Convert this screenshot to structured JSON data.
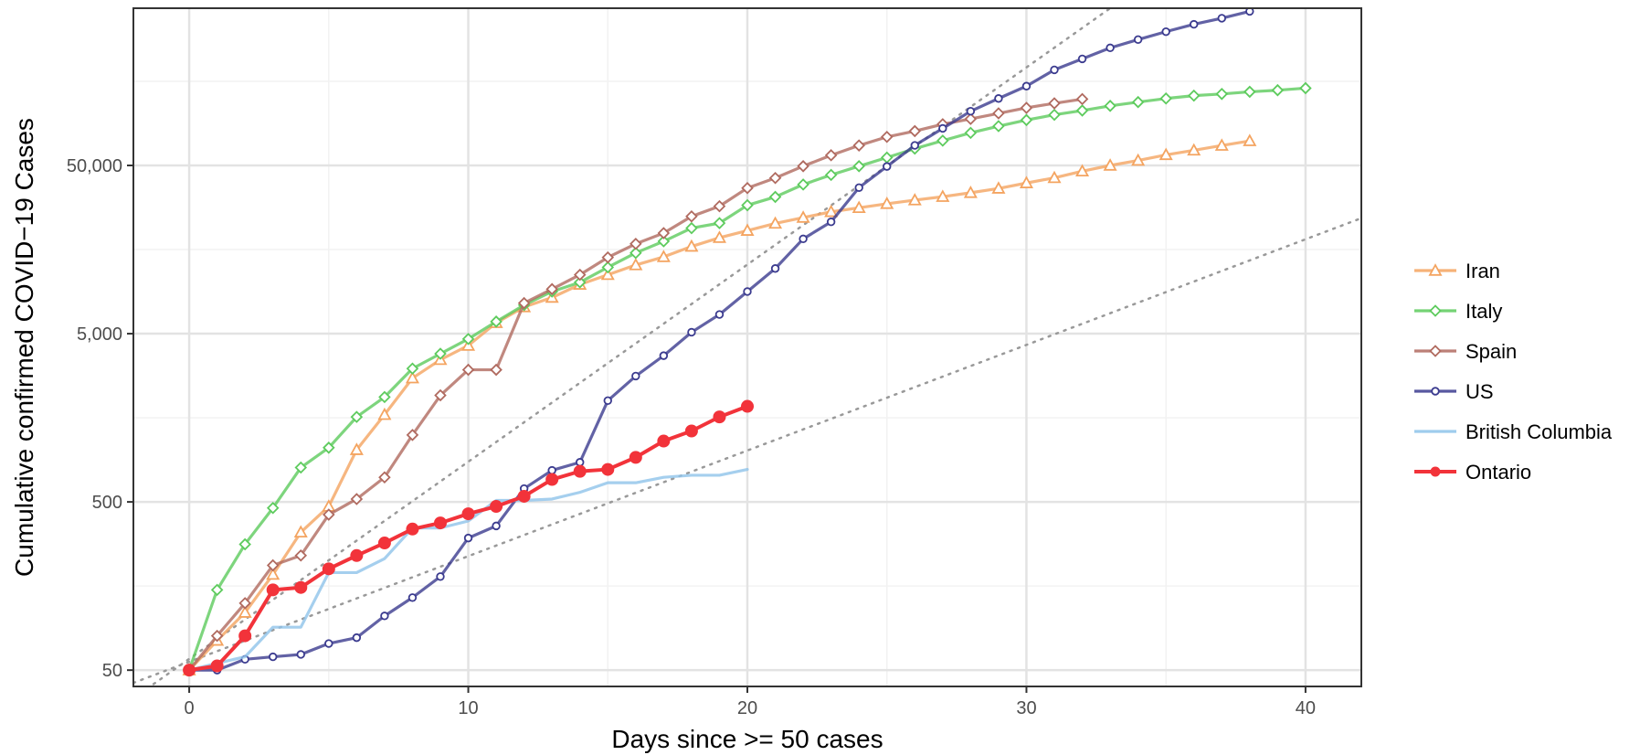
{
  "chart_data": {
    "type": "line",
    "xlabel": "Days since >= 50 cases",
    "ylabel": "Cumulative confirmed COVID−19 Cases",
    "x_scale": "linear",
    "y_scale": "log",
    "xlim": [
      -2,
      42
    ],
    "ylim": [
      40,
      430000
    ],
    "x_ticks": [
      {
        "value": 0,
        "label": "0"
      },
      {
        "value": 10,
        "label": "10"
      },
      {
        "value": 20,
        "label": "20"
      },
      {
        "value": 30,
        "label": "30"
      },
      {
        "value": 40,
        "label": "40"
      }
    ],
    "y_ticks": [
      {
        "value": 50,
        "label": "50"
      },
      {
        "value": 500,
        "label": "500"
      },
      {
        "value": 5000,
        "label": "5,000"
      },
      {
        "value": 50000,
        "label": "50,000"
      }
    ],
    "grid": true,
    "legend_position": "right",
    "reference_lines": [
      {
        "x": [
          -2,
          34
        ],
        "y": [
          34,
          563000
        ],
        "style": "dotted",
        "color": "#999999"
      },
      {
        "x": [
          -2,
          42
        ],
        "y": [
          42,
          24300
        ],
        "style": "dotted",
        "color": "#999999"
      }
    ],
    "series": [
      {
        "name": "Iran",
        "color": "#F4A460",
        "marker": "triangle",
        "x": [
          0,
          1,
          2,
          3,
          4,
          5,
          6,
          7,
          8,
          9,
          10,
          11,
          12,
          13,
          14,
          15,
          16,
          17,
          18,
          19,
          20,
          21,
          22,
          23,
          24,
          25,
          26,
          27,
          28,
          29,
          30,
          31,
          32,
          33,
          34,
          35,
          36,
          37,
          38
        ],
        "y": [
          50,
          75,
          110,
          185,
          330,
          470,
          1020,
          1650,
          2720,
          3500,
          4250,
          5800,
          7200,
          8200,
          9800,
          11200,
          12800,
          14300,
          16500,
          18600,
          20500,
          22600,
          24500,
          26500,
          28000,
          29600,
          31100,
          32600,
          34400,
          36500,
          39300,
          42200,
          46200,
          50000,
          53500,
          57800,
          61500,
          65700,
          69900
        ]
      },
      {
        "name": "Italy",
        "color": "#5DCB5D",
        "marker": "diamond",
        "x": [
          0,
          1,
          2,
          3,
          4,
          5,
          6,
          7,
          8,
          9,
          10,
          11,
          12,
          13,
          14,
          15,
          16,
          17,
          18,
          19,
          20,
          21,
          22,
          23,
          24,
          25,
          26,
          27,
          28,
          29,
          30,
          31,
          32,
          33,
          34,
          35,
          36,
          37,
          38,
          39,
          40
        ],
        "y": [
          50,
          150,
          280,
          460,
          800,
          1050,
          1600,
          2100,
          3100,
          3800,
          4650,
          5900,
          7400,
          8900,
          10100,
          12400,
          15100,
          17700,
          21200,
          22700,
          29000,
          32500,
          38500,
          43900,
          49500,
          55700,
          62900,
          70200,
          78100,
          85600,
          93100,
          100000,
          106000,
          113000,
          119000,
          125000,
          130000,
          133000,
          137000,
          140000,
          144000
        ]
      },
      {
        "name": "Spain",
        "color": "#B06A5F",
        "marker": "diamond",
        "x": [
          0,
          1,
          2,
          3,
          4,
          5,
          6,
          7,
          8,
          9,
          10,
          11,
          12,
          13,
          14,
          15,
          16,
          17,
          18,
          19,
          20,
          21,
          22,
          23,
          24,
          25,
          26,
          27,
          28,
          29,
          30,
          31,
          32
        ],
        "y": [
          50,
          80,
          125,
          210,
          240,
          420,
          520,
          700,
          1250,
          2150,
          3050,
          3050,
          7600,
          9200,
          11200,
          14200,
          17100,
          19800,
          24900,
          28600,
          36700,
          42100,
          49500,
          57500,
          65700,
          73900,
          80000,
          87900,
          94500,
          102000,
          110000,
          117000,
          124000
        ]
      },
      {
        "name": "US",
        "color": "#3B3B8F",
        "marker": "circle",
        "x": [
          0,
          1,
          2,
          3,
          4,
          5,
          6,
          7,
          8,
          9,
          10,
          11,
          12,
          13,
          14,
          15,
          16,
          17,
          18,
          19,
          20,
          21,
          22,
          23,
          24,
          25,
          26,
          27,
          28,
          29,
          30,
          31,
          32,
          33,
          34,
          35,
          36,
          37,
          38
        ],
        "y": [
          50,
          50,
          58,
          60,
          62,
          72,
          78,
          105,
          135,
          180,
          305,
          360,
          600,
          770,
          860,
          2000,
          2800,
          3700,
          5100,
          6500,
          8900,
          12200,
          18300,
          23100,
          36900,
          49300,
          65800,
          83000,
          105000,
          125000,
          148000,
          185000,
          215000,
          250000,
          280000,
          312000,
          345000,
          375000,
          412000
        ]
      },
      {
        "name": "British Columbia",
        "color": "#8EC3EA",
        "marker": "none",
        "x": [
          0,
          1,
          2,
          3,
          4,
          5,
          6,
          7,
          8,
          9,
          10,
          11,
          12,
          13,
          14,
          15,
          16,
          17,
          18,
          19,
          20
        ],
        "y": [
          50,
          55,
          60,
          90,
          90,
          190,
          190,
          230,
          350,
          350,
          385,
          510,
          510,
          520,
          570,
          650,
          650,
          700,
          720,
          720,
          780
        ]
      },
      {
        "name": "Ontario",
        "color": "#F2333A",
        "marker": "circle",
        "x": [
          0,
          1,
          2,
          3,
          4,
          5,
          6,
          7,
          8,
          9,
          10,
          11,
          12,
          13,
          14,
          15,
          16,
          17,
          18,
          19,
          20
        ],
        "y": [
          50,
          53,
          80,
          150,
          155,
          200,
          240,
          285,
          345,
          375,
          425,
          470,
          540,
          680,
          760,
          780,
          920,
          1150,
          1320,
          1600,
          1850
        ]
      }
    ]
  }
}
